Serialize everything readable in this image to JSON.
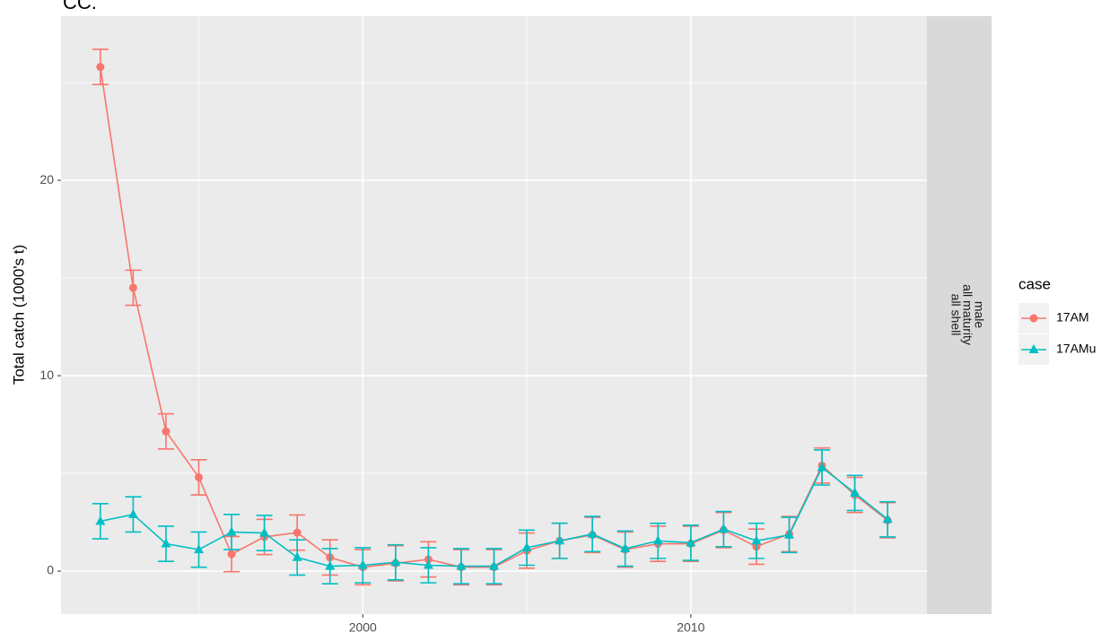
{
  "chart_data": {
    "type": "line",
    "title": "CC.",
    "ylabel": "Total catch (1000's t)",
    "x": [
      1992,
      1993,
      1994,
      1995,
      1996,
      1997,
      1998,
      1999,
      2000,
      2001,
      2002,
      2003,
      2004,
      2005,
      2006,
      2007,
      2008,
      2009,
      2010,
      2011,
      2012,
      2013,
      2014,
      2015,
      2016
    ],
    "series": [
      {
        "name": "17AM",
        "color": "#F8766D",
        "shape": "circle",
        "values": [
          25.8,
          14.5,
          7.15,
          4.8,
          0.87,
          1.75,
          1.97,
          0.7,
          0.2,
          0.4,
          0.6,
          0.2,
          0.2,
          1.05,
          1.55,
          1.85,
          1.1,
          1.4,
          1.4,
          2.1,
          1.25,
          1.9,
          5.4,
          3.9,
          2.6
        ],
        "errors": [
          0.9,
          0.9,
          0.9,
          0.9,
          0.9,
          0.9,
          0.9,
          0.9,
          0.9,
          0.9,
          0.9,
          0.9,
          0.9,
          0.9,
          0.9,
          0.9,
          0.9,
          0.9,
          0.9,
          0.9,
          0.9,
          0.9,
          0.9,
          0.9,
          0.9
        ]
      },
      {
        "name": "17AMu",
        "color": "#00BFC4",
        "shape": "triangle",
        "values": [
          2.55,
          2.9,
          1.4,
          1.1,
          2.0,
          1.95,
          0.7,
          0.25,
          0.3,
          0.45,
          0.3,
          0.25,
          0.25,
          1.2,
          1.55,
          1.9,
          1.15,
          1.55,
          1.45,
          2.15,
          1.55,
          1.85,
          5.3,
          4.0,
          2.65
        ],
        "errors": [
          0.9,
          0.9,
          0.9,
          0.9,
          0.9,
          0.9,
          0.9,
          0.9,
          0.9,
          0.9,
          0.9,
          0.9,
          0.9,
          0.9,
          0.9,
          0.9,
          0.9,
          0.9,
          0.9,
          0.9,
          0.9,
          0.9,
          0.9,
          0.9,
          0.9
        ]
      }
    ],
    "xlim": [
      1990.8,
      2017.2
    ],
    "xticks": [
      2000,
      2010
    ],
    "xminor": [
      1995,
      2005,
      2015
    ],
    "ylim": [
      -2.2,
      28.4
    ],
    "yticks": [
      0,
      10,
      20
    ],
    "yminor": [
      5,
      15,
      25
    ],
    "grid": true,
    "legend_title": "case",
    "legend_position": "right",
    "strip": [
      "male",
      "all maturity",
      "all shell"
    ]
  }
}
